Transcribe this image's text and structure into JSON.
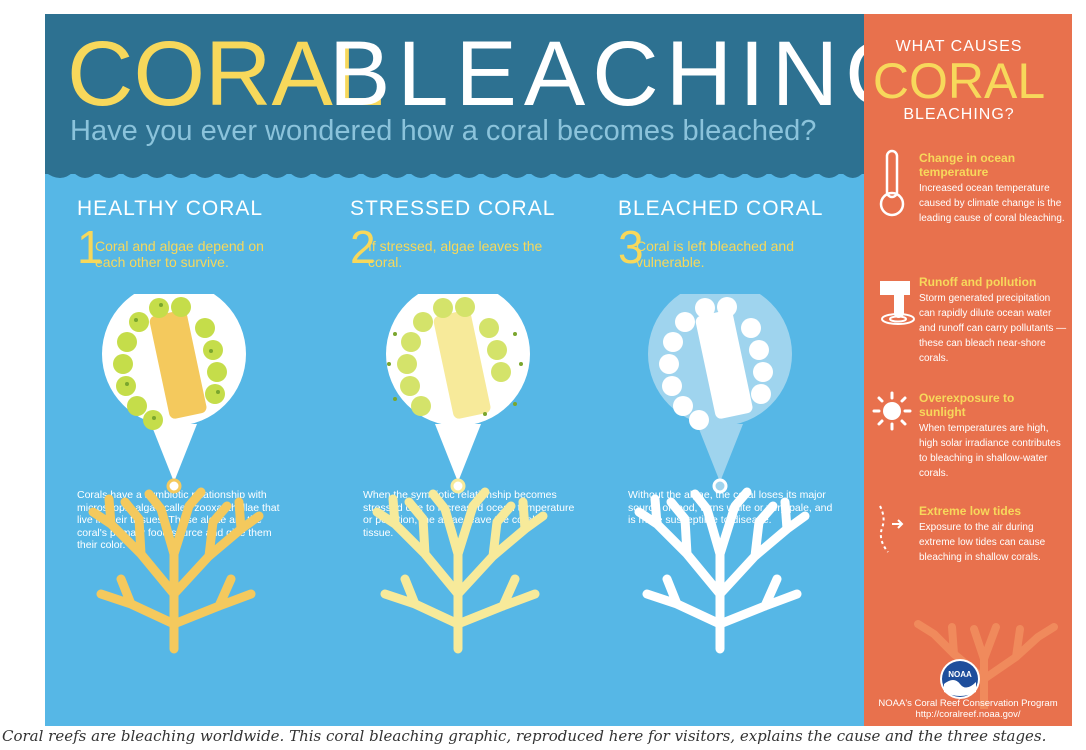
{
  "title": {
    "part1": "CORAL",
    "part2": "BLEACHING"
  },
  "subtitle": "Have you ever wondered how a coral becomes bleached?",
  "columns": [
    {
      "heading": "HEALTHY CORAL",
      "number": "1",
      "description": "Coral and algae depend on each other to survive.",
      "body": "Corals have a symbiotic relationship with microscopic algae called zooxanthellae that live in their tissues. These algae are the coral's primary food source and give them their color."
    },
    {
      "heading": "STRESSED CORAL",
      "number": "2",
      "description": "If stressed, algae leaves the coral.",
      "body": "When the symbiotic relationship becomes stressed due to increased ocean temperature or pollution, the algae leave the coral's tissue."
    },
    {
      "heading": "BLEACHED CORAL",
      "number": "3",
      "description": "Coral is left bleached and vulnerable.",
      "body": "Without the algae, the coral loses its major source of food, turns white or very pale, and is more susceptible to disease."
    }
  ],
  "sidebar": {
    "what": "WHAT CAUSES",
    "coral": "CORAL",
    "bleaching": "BLEACHING?",
    "causes": [
      {
        "icon": "thermometer-icon",
        "title": "Change in ocean temperature",
        "text": "Increased ocean temperature caused by climate change is the leading cause of coral bleaching."
      },
      {
        "icon": "runoff-icon",
        "title": "Runoff and pollution",
        "text": "Storm generated precipitation can rapidly dilute ocean water and runoff can carry pollutants — these can bleach near-shore corals."
      },
      {
        "icon": "sun-icon",
        "title": "Overexposure to sunlight",
        "text": "When temperatures are high, high solar irradiance contributes to bleaching in shallow-water corals."
      },
      {
        "icon": "low-tide-icon",
        "title": "Extreme low tides",
        "text": "Exposure to the air during extreme low tides can cause bleaching in shallow corals."
      }
    ],
    "logo_text": "NOAA",
    "org": "NOAA's Coral Reef Conservation Program",
    "url": "http://coralreef.noaa.gov/"
  },
  "caption": "Coral reefs are bleaching worldwide. This coral bleaching graphic, reproduced here for visitors, explains the cause and the three stages.",
  "colors": {
    "header": "#2d7191",
    "sea": "#56b7e6",
    "sidebar": "#e8714d",
    "yellow": "#f7d85b",
    "healthy_coral": "#f4c95d",
    "stressed_coral": "#f7ea9a",
    "algae": "#c5dd4a"
  }
}
